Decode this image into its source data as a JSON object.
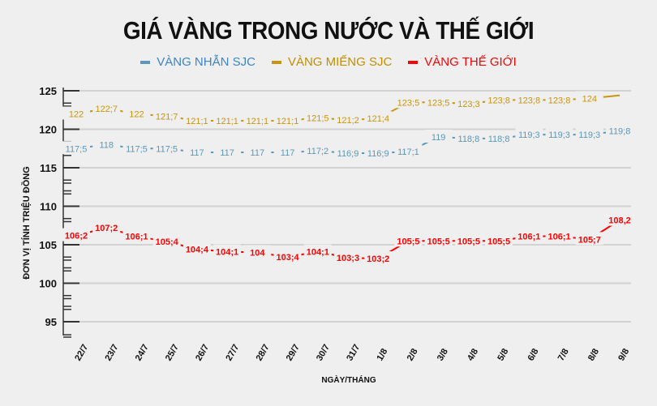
{
  "title": "GIÁ VÀNG TRONG NƯỚC VÀ THẾ GIỚI",
  "legend": [
    {
      "label": "VÀNG NHẪN SJC",
      "color": "#5b97b9",
      "text_color": "#3d85c6"
    },
    {
      "label": "VÀNG MIẾNG SJC",
      "color": "#c9950c",
      "text_color": "#bf8f00"
    },
    {
      "label": "VÀNG THẾ GIỚI",
      "color": "#ff0000",
      "text_color": "#ff0000"
    }
  ],
  "chart_data": {
    "type": "line",
    "title": "GIÁ VÀNG TRONG NƯỚC VÀ THẾ GIỚI",
    "xlabel": "NGÀY/THÁNG",
    "ylabel": "ĐƠN VỊ TÍNH TRIỆU ĐỒNG",
    "ylim": [
      93,
      125
    ],
    "yticks": [
      95,
      100,
      105,
      110,
      115,
      120,
      125
    ],
    "grid": true,
    "legend_position": "top",
    "categories": [
      "22/7",
      "23/7",
      "24/7",
      "25/7",
      "26/7",
      "27/7",
      "28/7",
      "29/7",
      "30/7",
      "31/7",
      "1/8",
      "2/8",
      "3/8",
      "4/8",
      "5/8",
      "6/8",
      "7/8",
      "8/8",
      "9/8"
    ],
    "series": [
      {
        "name": "VÀNG NHẪN SJC",
        "color": "#5b97b9",
        "values": [
          117.5,
          118,
          117.5,
          117.5,
          117,
          117,
          117,
          117,
          117.2,
          116.9,
          116.9,
          117.1,
          119,
          118.8,
          118.8,
          119.3,
          119.3,
          119.3,
          119.8
        ],
        "labels": [
          "117;5",
          "118",
          "117;5",
          "117;5",
          "117",
          "117",
          "117",
          "117",
          "117;2",
          "116;9",
          "116;9",
          "117;1",
          "119",
          "118;8",
          "118;8",
          "119;3",
          "119;3",
          "119;3",
          "119;8"
        ]
      },
      {
        "name": "VÀNG MIẾNG SJC",
        "color": "#c9950c",
        "values": [
          122,
          122.7,
          122,
          121.7,
          121.1,
          121.1,
          121.1,
          121.1,
          121.5,
          121.2,
          121.4,
          123.5,
          123.5,
          123.3,
          123.8,
          123.8,
          123.8,
          124,
          124.4
        ],
        "labels": [
          "122",
          "122;7",
          "122",
          "121;7",
          "121;1",
          "121;1",
          "121;1",
          "121;1",
          "121;5",
          "121;2",
          "121;4",
          "123;5",
          "123;5",
          "123;3",
          "123;8",
          "123;8",
          "123;8",
          "124",
          ""
        ]
      },
      {
        "name": "VÀNG THẾ GIỚI",
        "color": "#ff0000",
        "values": [
          106.2,
          107.2,
          106.1,
          105.4,
          104.4,
          104.1,
          104,
          103.4,
          104.1,
          103.3,
          103.2,
          105.5,
          105.5,
          105.5,
          105.5,
          106.1,
          106.1,
          105.7,
          108.2
        ],
        "labels": [
          "106;2",
          "107;2",
          "106;1",
          "105;4",
          "104;4",
          "104;1",
          "104",
          "103;4",
          "104;1",
          "103;3",
          "103;2",
          "105;5",
          "105;5",
          "105;5",
          "105;5",
          "106;1",
          "106;1",
          "105;7",
          "108,2"
        ]
      }
    ]
  }
}
